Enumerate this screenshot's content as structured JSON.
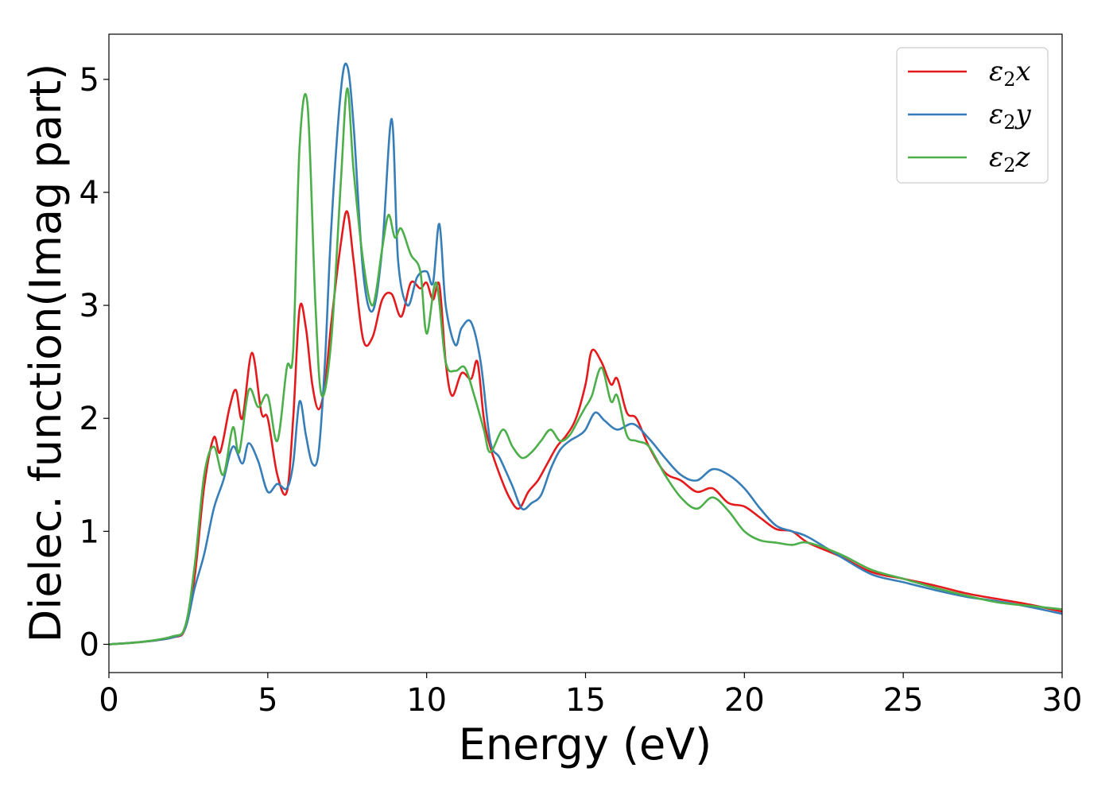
{
  "chart_data": {
    "type": "line",
    "xlabel": "Energy (eV)",
    "ylabel": "Dielec. function(Imag part)",
    "xlim": [
      0,
      30
    ],
    "ylim": [
      -0.25,
      5.4
    ],
    "x_ticks": [
      "0",
      "5",
      "10",
      "15",
      "20",
      "25",
      "30"
    ],
    "y_ticks": [
      "0",
      "1",
      "2",
      "3",
      "4",
      "5"
    ],
    "grid": false,
    "legend_position": "top-right",
    "series": [
      {
        "name": "ε2x",
        "legend_symbol": "ε",
        "legend_sub": "2",
        "legend_axis": "x",
        "color": "#e41a1c",
        "x": [
          0,
          1,
          2,
          2.4,
          2.7,
          3.0,
          3.3,
          3.5,
          3.8,
          4.0,
          4.2,
          4.5,
          4.8,
          5.0,
          5.3,
          5.6,
          5.8,
          6.0,
          6.2,
          6.4,
          6.6,
          6.8,
          7.0,
          7.3,
          7.5,
          7.7,
          8.0,
          8.3,
          8.6,
          8.9,
          9.2,
          9.5,
          9.8,
          10.0,
          10.2,
          10.4,
          10.6,
          10.8,
          11.1,
          11.4,
          11.6,
          11.8,
          12.0,
          12.3,
          12.6,
          12.9,
          13.2,
          13.5,
          13.8,
          14.1,
          14.4,
          14.7,
          15.0,
          15.2,
          15.5,
          15.8,
          16.0,
          16.3,
          16.6,
          17.0,
          17.5,
          18.0,
          18.5,
          19.0,
          19.5,
          20.0,
          20.5,
          21.0,
          21.5,
          22.0,
          23.0,
          24.0,
          25.0,
          26.0,
          27.0,
          28.0,
          29.0,
          30.0
        ],
        "y": [
          0,
          0.02,
          0.06,
          0.14,
          0.6,
          1.4,
          1.83,
          1.7,
          2.1,
          2.25,
          2.0,
          2.58,
          2.05,
          2.0,
          1.5,
          1.35,
          2.0,
          2.97,
          2.8,
          2.3,
          2.08,
          2.3,
          2.85,
          3.55,
          3.83,
          3.4,
          2.7,
          2.72,
          3.05,
          3.1,
          2.9,
          3.2,
          3.15,
          3.2,
          3.05,
          3.18,
          2.5,
          2.2,
          2.4,
          2.35,
          2.5,
          2.0,
          1.75,
          1.5,
          1.3,
          1.2,
          1.35,
          1.45,
          1.6,
          1.75,
          1.85,
          2.0,
          2.3,
          2.6,
          2.5,
          2.3,
          2.35,
          2.05,
          2.0,
          1.75,
          1.52,
          1.45,
          1.35,
          1.38,
          1.25,
          1.22,
          1.12,
          1.02,
          1.0,
          0.9,
          0.78,
          0.64,
          0.58,
          0.52,
          0.45,
          0.4,
          0.35,
          0.29
        ]
      },
      {
        "name": "ε2y",
        "legend_symbol": "ε",
        "legend_sub": "2",
        "legend_axis": "y",
        "color": "#377eb8",
        "x": [
          0,
          1,
          2,
          2.4,
          2.7,
          3.0,
          3.3,
          3.6,
          3.9,
          4.2,
          4.4,
          4.7,
          5.0,
          5.3,
          5.6,
          5.8,
          6.0,
          6.2,
          6.4,
          6.6,
          6.8,
          7.0,
          7.3,
          7.5,
          7.7,
          8.0,
          8.3,
          8.6,
          8.9,
          9.1,
          9.4,
          9.7,
          10.0,
          10.2,
          10.4,
          10.6,
          10.9,
          11.1,
          11.4,
          11.7,
          12.0,
          12.3,
          12.7,
          13.0,
          13.3,
          13.6,
          13.9,
          14.2,
          14.5,
          14.8,
          15.0,
          15.3,
          15.6,
          16.0,
          16.5,
          17.0,
          17.5,
          18.0,
          18.5,
          19.0,
          19.5,
          20.0,
          20.5,
          21.0,
          21.5,
          22.0,
          23.0,
          24.0,
          25.0,
          26.0,
          27.0,
          28.0,
          29.0,
          30.0
        ],
        "y": [
          0,
          0.02,
          0.06,
          0.14,
          0.5,
          0.8,
          1.2,
          1.45,
          1.75,
          1.6,
          1.78,
          1.62,
          1.35,
          1.42,
          1.38,
          1.6,
          2.15,
          1.85,
          1.6,
          1.7,
          2.5,
          3.7,
          4.9,
          5.12,
          4.6,
          3.3,
          2.95,
          3.5,
          4.65,
          3.4,
          3.0,
          3.25,
          3.3,
          3.2,
          3.72,
          3.0,
          2.65,
          2.8,
          2.85,
          2.5,
          1.8,
          1.65,
          1.4,
          1.2,
          1.25,
          1.32,
          1.55,
          1.72,
          1.8,
          1.85,
          1.9,
          2.05,
          1.98,
          1.9,
          1.95,
          1.82,
          1.65,
          1.5,
          1.45,
          1.55,
          1.5,
          1.38,
          1.2,
          1.05,
          1.0,
          0.95,
          0.78,
          0.62,
          0.55,
          0.48,
          0.42,
          0.38,
          0.33,
          0.27
        ]
      },
      {
        "name": "ε2z",
        "legend_symbol": "ε",
        "legend_sub": "2",
        "legend_axis": "z",
        "color": "#4daf4a",
        "x": [
          0,
          1,
          2,
          2.4,
          2.7,
          3.0,
          3.3,
          3.6,
          3.9,
          4.1,
          4.4,
          4.7,
          5.0,
          5.3,
          5.6,
          5.8,
          6.0,
          6.25,
          6.5,
          6.7,
          7.0,
          7.3,
          7.5,
          7.7,
          8.0,
          8.3,
          8.6,
          8.8,
          9.0,
          9.2,
          9.5,
          9.8,
          10.0,
          10.3,
          10.6,
          10.9,
          11.2,
          11.5,
          11.8,
          12.0,
          12.4,
          12.7,
          13.0,
          13.3,
          13.6,
          13.9,
          14.2,
          14.5,
          14.8,
          15.0,
          15.2,
          15.5,
          15.8,
          16.0,
          16.3,
          16.6,
          17.0,
          17.5,
          18.0,
          18.5,
          19.0,
          19.5,
          20.0,
          20.5,
          21.0,
          21.5,
          22.0,
          23.0,
          24.0,
          25.0,
          26.0,
          27.0,
          28.0,
          29.0,
          30.0
        ],
        "y": [
          0,
          0.02,
          0.07,
          0.16,
          0.7,
          1.5,
          1.75,
          1.5,
          1.92,
          1.7,
          2.25,
          2.1,
          2.2,
          1.8,
          2.45,
          2.6,
          4.4,
          4.78,
          3.0,
          2.2,
          2.7,
          4.1,
          4.92,
          4.2,
          3.4,
          3.0,
          3.5,
          3.8,
          3.6,
          3.68,
          3.45,
          3.3,
          2.75,
          3.2,
          2.5,
          2.42,
          2.45,
          2.2,
          1.9,
          1.7,
          1.9,
          1.75,
          1.65,
          1.7,
          1.8,
          1.9,
          1.8,
          1.85,
          2.0,
          2.1,
          2.2,
          2.45,
          2.15,
          2.2,
          1.85,
          1.8,
          1.75,
          1.5,
          1.3,
          1.2,
          1.3,
          1.18,
          1.0,
          0.92,
          0.9,
          0.88,
          0.9,
          0.8,
          0.66,
          0.58,
          0.5,
          0.43,
          0.37,
          0.34,
          0.31
        ]
      }
    ]
  }
}
